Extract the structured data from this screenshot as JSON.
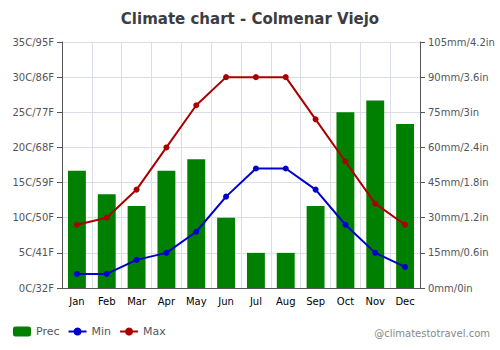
{
  "chart_data": {
    "type": "bar",
    "title": "Climate chart - Colmenar Viejo",
    "categories": [
      "Jan",
      "Feb",
      "Mar",
      "Apr",
      "May",
      "Jun",
      "Jul",
      "Aug",
      "Sep",
      "Oct",
      "Nov",
      "Dec"
    ],
    "series": [
      {
        "name": "Prec",
        "type": "bar",
        "axis": "y2",
        "color": "#008000",
        "values": [
          50,
          40,
          35,
          50,
          55,
          30,
          15,
          15,
          35,
          75,
          80,
          70
        ]
      },
      {
        "name": "Min",
        "type": "line",
        "marker": "circle",
        "color": "#0000cc",
        "values": [
          2,
          2,
          4,
          5,
          8,
          13,
          17,
          17,
          14,
          9,
          5,
          3
        ]
      },
      {
        "name": "Max",
        "type": "line",
        "marker": "circle",
        "color": "#aa0000",
        "values": [
          9,
          10,
          14,
          20,
          26,
          30,
          30,
          30,
          24,
          18,
          12,
          9
        ]
      }
    ],
    "ylim": [
      0,
      35
    ],
    "yticks": [
      {
        "value": 0,
        "label": "0C/32F"
      },
      {
        "value": 5,
        "label": "5C/41F"
      },
      {
        "value": 10,
        "label": "10C/50F"
      },
      {
        "value": 15,
        "label": "15C/59F"
      },
      {
        "value": 20,
        "label": "20C/68F"
      },
      {
        "value": 25,
        "label": "25C/77F"
      },
      {
        "value": 30,
        "label": "30C/86F"
      },
      {
        "value": 35,
        "label": "35C/95F"
      }
    ],
    "y2lim": [
      0,
      105
    ],
    "y2ticks": [
      {
        "value": 0,
        "label": "0mm/0in"
      },
      {
        "value": 15,
        "label": "15mm/0.6in"
      },
      {
        "value": 30,
        "label": "30mm/1.2in"
      },
      {
        "value": 45,
        "label": "45mm/1.8in"
      },
      {
        "value": 60,
        "label": "60mm/2.4in"
      },
      {
        "value": 75,
        "label": "75mm/3in"
      },
      {
        "value": 90,
        "label": "90mm/3.6in"
      },
      {
        "value": 105,
        "label": "105mm/4.2in"
      }
    ],
    "grid": true,
    "legend": "bottom left",
    "annotations": [
      "@climatestotravel.com"
    ]
  }
}
